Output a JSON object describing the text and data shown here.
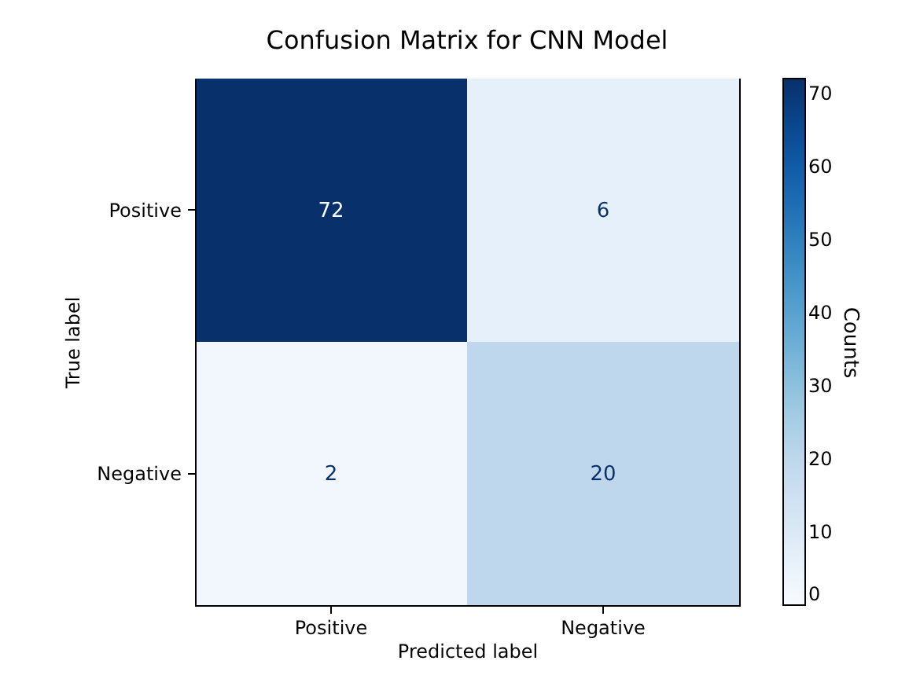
{
  "chart_data": {
    "type": "heatmap",
    "title": "Confusion Matrix for CNN Model",
    "xlabel": "Predicted label",
    "ylabel": "True label",
    "clabel": "Counts",
    "categories": [
      "Positive",
      "Negative"
    ],
    "y_categories": [
      "Positive",
      "Negative"
    ],
    "cells": [
      [
        72,
        6
      ],
      [
        2,
        20
      ]
    ],
    "clim": [
      0,
      72
    ],
    "cticks": [
      0,
      10,
      20,
      30,
      40,
      50,
      60,
      70
    ],
    "data_labels": true
  }
}
